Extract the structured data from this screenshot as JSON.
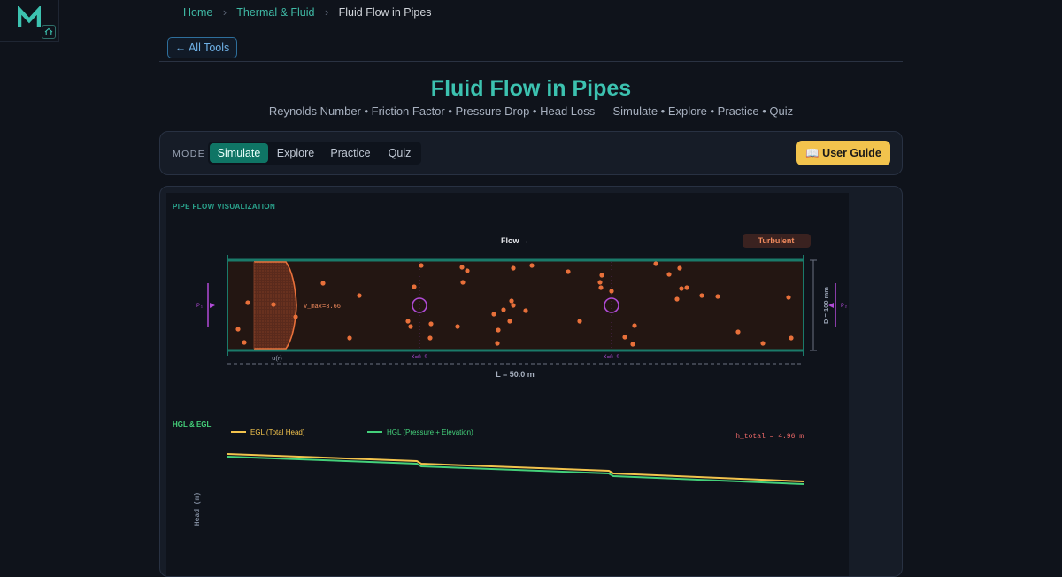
{
  "brand": {
    "logo_letter": "M"
  },
  "breadcrumb": {
    "home": "Home",
    "section": "Thermal & Fluid",
    "current": "Fluid Flow in Pipes"
  },
  "back_button": "← All Tools",
  "page": {
    "title": "Fluid Flow in Pipes",
    "subtitle": "Reynolds Number • Friction Factor • Pressure Drop • Head Loss — Simulate • Explore • Practice • Quiz"
  },
  "mode": {
    "label": "MODE",
    "tabs": [
      "Simulate",
      "Explore",
      "Practice",
      "Quiz"
    ],
    "active": "Simulate"
  },
  "user_guide": "📖 User Guide",
  "visualization": {
    "heading": "PIPE FLOW VISUALIZATION",
    "flow_label": "Flow →",
    "regime": "Turbulent",
    "p1": "P₁",
    "p2": "P₂",
    "diameter_label": "D = 100 mm",
    "length_label": "L = 50.0 m",
    "velocity_label": "V_max=3.66",
    "profile_label": "u(r)",
    "fitting_label_1": "K=0.9",
    "fitting_label_2": "K=0.9"
  },
  "hgl_chart": {
    "heading": "HGL & EGL",
    "egl_legend": "EGL (Total Head)",
    "hgl_legend": "HGL (Pressure + Elevation)",
    "h_total": "h_total = 4.96 m",
    "y_axis_label": "Head (m)"
  },
  "colors": {
    "accent": "#3cc2b0",
    "pipe_wall": "#1a7a6a",
    "particle": "#e8703a",
    "fitting": "#b04bd6",
    "egl": "#f2c34d",
    "hgl": "#44d07a",
    "h_total": "#f06a6a"
  }
}
